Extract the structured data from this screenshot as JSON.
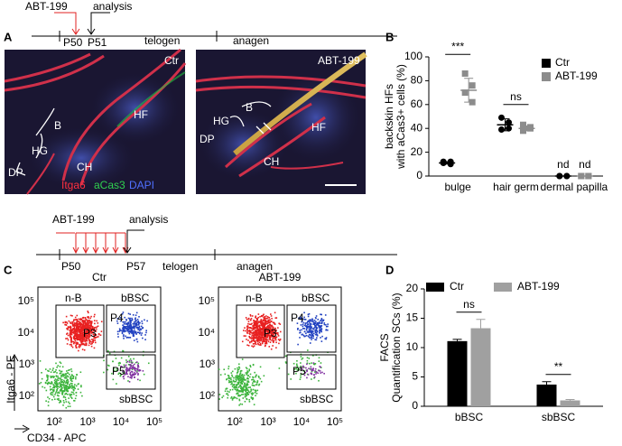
{
  "timeline_top": {
    "drug": "ABT-199",
    "analysis": "analysis",
    "day_start": "P50",
    "day_end": "P51",
    "phase_1": "telogen",
    "phase_2": "anagen"
  },
  "panel_a": {
    "label": "A",
    "images": [
      {
        "condition": "Ctr",
        "labels": [
          "B",
          "HG",
          "DP",
          "CH",
          "HF"
        ],
        "stain": [
          "Itga6",
          "aCas3",
          "DAPI"
        ]
      },
      {
        "condition": "ABT-199",
        "labels": [
          "B",
          "HG",
          "DP",
          "CH",
          "HF"
        ]
      }
    ]
  },
  "timeline_bottom": {
    "drug": "ABT-199",
    "analysis": "analysis",
    "day_start": "P50",
    "day_end": "P57",
    "phase_1": "telogen",
    "phase_2": "anagen"
  },
  "panel_c": {
    "label": "C",
    "ylabel": "Itga6 - PE",
    "xlabel": "CD34 - APC",
    "yticks": [
      "10⁵",
      "10⁴",
      "10³",
      "10²"
    ],
    "xticks": [
      "10²",
      "10³",
      "10⁴",
      "10⁵"
    ],
    "plots": [
      {
        "title": "Ctr",
        "gates": [
          "n-B",
          "bBSC",
          "P3",
          "P4",
          "P5",
          "sbBSC"
        ]
      },
      {
        "title": "ABT-199",
        "gates": [
          "n-B",
          "bBSC",
          "P3",
          "P4",
          "P5",
          "sbBSC"
        ]
      }
    ]
  },
  "chart_data": [
    {
      "type": "dot",
      "panel_label": "B",
      "ylabel": [
        "backskin HFs",
        "with aCas3+ cells (%)"
      ],
      "categories": [
        "bulge",
        "hair germ",
        "dermal papilla"
      ],
      "series": [
        {
          "name": "Ctr",
          "color": "#000000",
          "values": [
            11,
            43,
            0
          ],
          "errors": [
            1,
            5,
            0
          ],
          "value_labels": [
            null,
            null,
            "nd"
          ],
          "points": [
            [
              12,
              10,
              11,
              12
            ],
            [
              49,
              45,
              39,
              40
            ],
            [
              0,
              0,
              0,
              0
            ]
          ]
        },
        {
          "name": "ABT-199",
          "color": "#8c8c8c",
          "values": [
            72,
            40,
            0
          ],
          "errors": [
            10,
            2,
            0
          ],
          "value_labels": [
            null,
            null,
            "nd"
          ],
          "points": [
            [
              86,
              76,
              70,
              62
            ],
            [
              43,
              41,
              38,
              40
            ],
            [
              0,
              0,
              0,
              0
            ]
          ]
        }
      ],
      "significance": [
        "***",
        "ns",
        null
      ],
      "ylim": [
        0,
        100
      ],
      "yticks": [
        0,
        20,
        40,
        60,
        80,
        100
      ],
      "legend": "top-right"
    },
    {
      "type": "bar",
      "panel_label": "D",
      "ylabel": [
        "FACS",
        "Quantification SCs (%)"
      ],
      "categories": [
        "bBSC",
        "sbBSC"
      ],
      "series": [
        {
          "name": "Ctr",
          "color": "#000000",
          "values": [
            11.1,
            3.7
          ],
          "errors": [
            0.3,
            0.5
          ]
        },
        {
          "name": "ABT-199",
          "color": "#a0a0a0",
          "values": [
            13.3,
            1.0
          ],
          "errors": [
            1.5,
            0.15
          ]
        }
      ],
      "significance": [
        "ns",
        "**"
      ],
      "ylim": [
        0,
        20
      ],
      "yticks": [
        0,
        5,
        10,
        15,
        20
      ],
      "legend": "top"
    }
  ]
}
